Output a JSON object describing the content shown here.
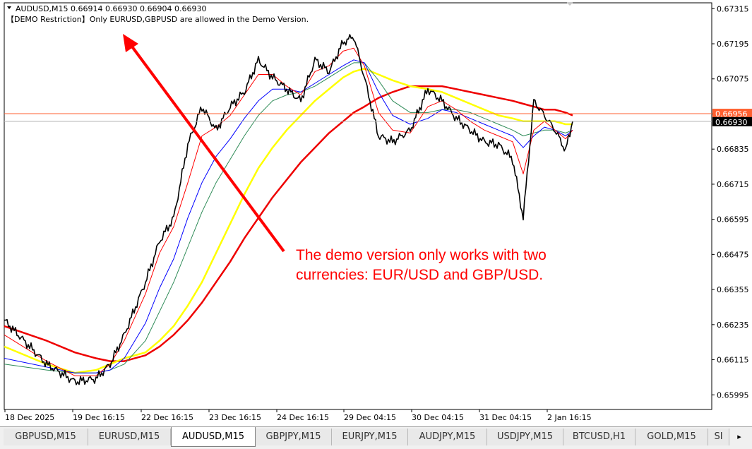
{
  "header": {
    "symbol_line": "AUDUSD,M15  0.66914 0.66930 0.66904 0.66930",
    "restriction_text": "【DEMO Restriction】Only EURUSD,GBPUSD are allowed in the Demo Version."
  },
  "annotation": {
    "line1": "The demo version only works with two",
    "line2": "currencies: EUR/USD and GBP/USD.",
    "color": "#ff0000"
  },
  "price_axis": {
    "ticks": [
      "0.67315",
      "0.67195",
      "0.67075",
      "0.66955",
      "0.66835",
      "0.66715",
      "0.66595",
      "0.66475",
      "0.66355",
      "0.66235",
      "0.66115",
      "0.65995"
    ],
    "ask_label": "0.66956",
    "bid_label": "0.66930"
  },
  "time_axis": {
    "labels": [
      "18 Dec 2025",
      "19 Dec 16:15",
      "22 Dec 16:15",
      "23 Dec 16:15",
      "24 Dec 16:15",
      "29 Dec 04:15",
      "30 Dec 04:15",
      "31 Dec 04:15",
      "2 Jan 16:15"
    ]
  },
  "tabs": [
    {
      "label": "GBPUSD,M15",
      "active": false
    },
    {
      "label": "EURUSD,M15",
      "active": false
    },
    {
      "label": "AUDUSD,M15",
      "active": true
    },
    {
      "label": "GBPJPY,M15",
      "active": false
    },
    {
      "label": "EURJPY,M15",
      "active": false
    },
    {
      "label": "AUDJPY,M15",
      "active": false
    },
    {
      "label": "USDJPY,M15",
      "active": false
    },
    {
      "label": "BTCUSD,H1",
      "active": false
    },
    {
      "label": "GOLD,M15",
      "active": false
    },
    {
      "label": "SI",
      "active": false
    }
  ],
  "tab_scroll_symbol": "▸",
  "colors": {
    "price": "#000000",
    "ma_fast": "#ff0000",
    "ma_blue": "#0000ff",
    "ma_green": "#2e8b57",
    "ma_yellow": "#ffff00",
    "ma_slow": "#ee0000",
    "ask_line": "#ff6030",
    "bid_line": "#b0b0b0"
  },
  "chart_data": {
    "type": "line",
    "symbol": "AUDUSD",
    "timeframe": "M15",
    "ylim": [
      0.65945,
      0.67335
    ],
    "x": [
      0,
      60,
      100,
      130,
      150,
      170,
      200,
      220,
      240,
      260,
      280,
      300,
      320,
      340,
      360,
      380,
      400,
      420,
      440,
      460,
      480,
      495,
      510,
      530,
      550,
      575,
      600,
      620,
      640,
      660,
      680,
      700,
      720,
      735,
      750,
      765,
      780,
      795,
      805
    ],
    "series": [
      {
        "key": "price",
        "values": [
          0.6625,
          0.661,
          0.6604,
          0.6605,
          0.661,
          0.662,
          0.6638,
          0.6652,
          0.666,
          0.6685,
          0.6698,
          0.669,
          0.6698,
          0.6703,
          0.6714,
          0.6708,
          0.6704,
          0.67,
          0.6714,
          0.671,
          0.672,
          0.6722,
          0.6708,
          0.6688,
          0.6686,
          0.669,
          0.6704,
          0.67,
          0.6694,
          0.669,
          0.6686,
          0.6685,
          0.668,
          0.666,
          0.67,
          0.6695,
          0.669,
          0.6683,
          0.6693
        ]
      },
      {
        "key": "ma_fast",
        "values": [
          0.662,
          0.6611,
          0.6606,
          0.6606,
          0.661,
          0.6618,
          0.6634,
          0.6648,
          0.6657,
          0.6672,
          0.6688,
          0.6691,
          0.6695,
          0.6702,
          0.6709,
          0.6709,
          0.6705,
          0.6702,
          0.671,
          0.6712,
          0.6717,
          0.6718,
          0.6712,
          0.6696,
          0.669,
          0.6689,
          0.6698,
          0.67,
          0.6697,
          0.6693,
          0.669,
          0.6688,
          0.6686,
          0.6675,
          0.669,
          0.6693,
          0.669,
          0.6687,
          0.669
        ]
      },
      {
        "key": "ma_blue",
        "values": [
          0.6612,
          0.6609,
          0.6607,
          0.6607,
          0.6608,
          0.6612,
          0.6624,
          0.6636,
          0.6646,
          0.666,
          0.6672,
          0.6681,
          0.6687,
          0.6694,
          0.67,
          0.6704,
          0.6704,
          0.6703,
          0.6706,
          0.6709,
          0.6712,
          0.6714,
          0.6713,
          0.6703,
          0.6695,
          0.6692,
          0.6694,
          0.6697,
          0.6696,
          0.6694,
          0.6692,
          0.669,
          0.6688,
          0.6684,
          0.6688,
          0.6691,
          0.669,
          0.6688,
          0.669
        ]
      },
      {
        "key": "ma_green",
        "values": [
          0.661,
          0.6608,
          0.6607,
          0.6607,
          0.6608,
          0.661,
          0.6618,
          0.6628,
          0.6638,
          0.665,
          0.6662,
          0.6672,
          0.668,
          0.6688,
          0.6695,
          0.67,
          0.6702,
          0.6703,
          0.6705,
          0.6708,
          0.6711,
          0.6713,
          0.6713,
          0.6707,
          0.67,
          0.6696,
          0.6696,
          0.6697,
          0.6697,
          0.6696,
          0.6694,
          0.6692,
          0.669,
          0.6688,
          0.6689,
          0.669,
          0.669,
          0.6689,
          0.669
        ]
      },
      {
        "key": "ma_yellow",
        "values": [
          0.6616,
          0.661,
          0.6607,
          0.6608,
          0.661,
          0.6612,
          0.6614,
          0.6618,
          0.6623,
          0.663,
          0.6638,
          0.6648,
          0.6658,
          0.6668,
          0.6677,
          0.6684,
          0.669,
          0.6695,
          0.67,
          0.6704,
          0.6708,
          0.671,
          0.6711,
          0.6709,
          0.6707,
          0.6705,
          0.6704,
          0.6703,
          0.6701,
          0.6699,
          0.6697,
          0.6695,
          0.6694,
          0.6693,
          0.6693,
          0.6693,
          0.6693,
          0.6692,
          0.6692
        ]
      },
      {
        "key": "ma_slow",
        "values": [
          0.6623,
          0.6618,
          0.6614,
          0.6612,
          0.6611,
          0.6611,
          0.6613,
          0.6616,
          0.662,
          0.6625,
          0.6631,
          0.6638,
          0.6645,
          0.6653,
          0.666,
          0.6667,
          0.6673,
          0.6679,
          0.6684,
          0.6689,
          0.6693,
          0.6696,
          0.6698,
          0.6701,
          0.6703,
          0.6705,
          0.6705,
          0.6705,
          0.6704,
          0.6703,
          0.6702,
          0.6701,
          0.67,
          0.6699,
          0.6698,
          0.6697,
          0.6697,
          0.6696,
          0.6695
        ]
      }
    ]
  }
}
